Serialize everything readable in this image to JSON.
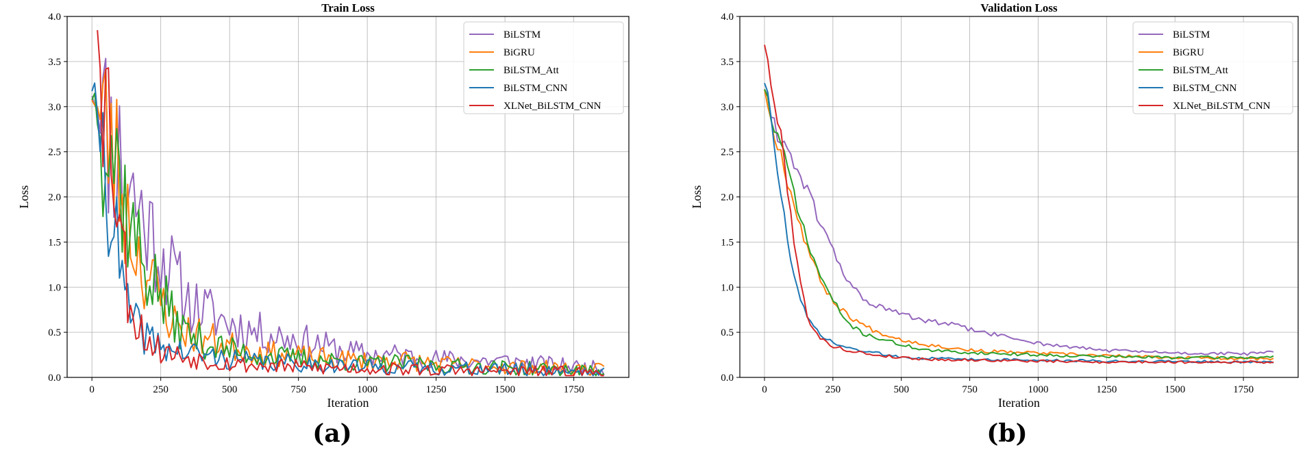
{
  "colors": {
    "BiLSTM": "#9467bd",
    "BiGRU": "#ff7f0e",
    "BiLSTM_Att": "#2ca02c",
    "BiLSTM_CNN": "#1f77b4",
    "XLNet_BiLSTM_CNN": "#d62728",
    "grid": "#b0b0b0"
  },
  "chart_data": [
    {
      "type": "line",
      "title": "Train Loss",
      "panel_label": "(a)",
      "xlabel": "Iteration",
      "ylabel": "Loss",
      "xlim": [
        -90,
        1950
      ],
      "ylim": [
        0,
        4.0
      ],
      "xticks": [
        0,
        250,
        500,
        750,
        1000,
        1250,
        1500,
        1750
      ],
      "yticks": [
        0.0,
        0.5,
        1.0,
        1.5,
        2.0,
        2.5,
        3.0,
        3.5,
        4.0
      ],
      "grid": true,
      "legend_position": "top-right",
      "noisy": true,
      "series": [
        {
          "name": "BiLSTM",
          "color_key": "BiLSTM",
          "seed": 11,
          "x": [
            0,
            30,
            70,
            100,
            130,
            160,
            200,
            250,
            300,
            350,
            400,
            500,
            600,
            700,
            800,
            900,
            1000,
            1100,
            1250,
            1500,
            1750,
            1860
          ],
          "y": [
            3.25,
            2.9,
            2.65,
            2.45,
            2.2,
            1.95,
            1.7,
            1.4,
            1.1,
            0.85,
            0.75,
            0.6,
            0.5,
            0.45,
            0.38,
            0.3,
            0.25,
            0.25,
            0.2,
            0.18,
            0.12,
            0.1
          ]
        },
        {
          "name": "BiGRU",
          "color_key": "BiGRU",
          "seed": 23,
          "x": [
            0,
            30,
            70,
            100,
            130,
            160,
            200,
            250,
            300,
            350,
            400,
            500,
            600,
            700,
            800,
            900,
            1000,
            1100,
            1250,
            1500,
            1750,
            1860
          ],
          "y": [
            3.2,
            2.85,
            2.6,
            2.2,
            1.75,
            1.45,
            1.15,
            0.85,
            0.6,
            0.5,
            0.45,
            0.35,
            0.28,
            0.25,
            0.22,
            0.2,
            0.18,
            0.2,
            0.15,
            0.12,
            0.1,
            0.08
          ]
        },
        {
          "name": "BiLSTM_Att",
          "color_key": "BiLSTM_Att",
          "seed": 37,
          "x": [
            0,
            30,
            70,
            100,
            130,
            160,
            200,
            250,
            300,
            350,
            400,
            500,
            600,
            700,
            800,
            900,
            1000,
            1100,
            1250,
            1500,
            1750,
            1860
          ],
          "y": [
            3.2,
            2.85,
            2.6,
            2.25,
            1.8,
            1.5,
            1.2,
            0.9,
            0.62,
            0.48,
            0.4,
            0.3,
            0.25,
            0.22,
            0.2,
            0.18,
            0.15,
            0.16,
            0.13,
            0.11,
            0.08,
            0.06
          ]
        },
        {
          "name": "BiLSTM_CNN",
          "color_key": "BiLSTM_CNN",
          "seed": 41,
          "x": [
            0,
            20,
            50,
            80,
            100,
            120,
            150,
            200,
            250,
            300,
            400,
            500,
            600,
            800,
            1000,
            1250,
            1500,
            1750,
            1860
          ],
          "y": [
            3.3,
            2.75,
            2.4,
            1.75,
            1.2,
            0.85,
            0.6,
            0.45,
            0.35,
            0.3,
            0.25,
            0.2,
            0.17,
            0.15,
            0.12,
            0.1,
            0.09,
            0.07,
            0.05
          ]
        },
        {
          "name": "XLNet_BiLSTM_CNN",
          "color_key": "XLNet_BiLSTM_CNN",
          "seed": 53,
          "x": [
            20,
            35,
            50,
            70,
            90,
            110,
            130,
            160,
            200,
            250,
            300,
            400,
            500,
            600,
            800,
            1000,
            1250,
            1500,
            1750,
            1860
          ],
          "y": [
            4.0,
            3.5,
            3.1,
            2.8,
            2.2,
            1.5,
            1.0,
            0.65,
            0.42,
            0.3,
            0.25,
            0.2,
            0.16,
            0.13,
            0.11,
            0.1,
            0.08,
            0.07,
            0.06,
            0.05
          ]
        }
      ]
    },
    {
      "type": "line",
      "title": "Validation Loss",
      "panel_label": "(b)",
      "xlabel": "Iteration",
      "ylabel": "Loss",
      "xlim": [
        -90,
        1950
      ],
      "ylim": [
        0,
        4.0
      ],
      "xticks": [
        0,
        250,
        500,
        750,
        1000,
        1250,
        1500,
        1750
      ],
      "yticks": [
        0.0,
        0.5,
        1.0,
        1.5,
        2.0,
        2.5,
        3.0,
        3.5,
        4.0
      ],
      "grid": true,
      "legend_position": "top-right",
      "noisy": false,
      "series": [
        {
          "name": "BiLSTM",
          "color_key": "BiLSTM",
          "seed": 61,
          "x": [
            0,
            25,
            50,
            100,
            150,
            200,
            250,
            300,
            350,
            400,
            450,
            500,
            600,
            700,
            750,
            800,
            900,
            1000,
            1100,
            1250,
            1500,
            1750,
            1860
          ],
          "y": [
            3.25,
            2.85,
            2.7,
            2.45,
            2.1,
            1.75,
            1.4,
            1.1,
            0.9,
            0.8,
            0.75,
            0.7,
            0.62,
            0.58,
            0.53,
            0.5,
            0.44,
            0.38,
            0.34,
            0.3,
            0.27,
            0.26,
            0.28
          ]
        },
        {
          "name": "BiGRU",
          "color_key": "BiGRU",
          "seed": 67,
          "x": [
            0,
            25,
            50,
            100,
            150,
            200,
            250,
            300,
            350,
            400,
            500,
            600,
            700,
            800,
            1000,
            1250,
            1500,
            1750,
            1860
          ],
          "y": [
            3.25,
            2.8,
            2.6,
            2.0,
            1.5,
            1.1,
            0.85,
            0.7,
            0.6,
            0.52,
            0.42,
            0.36,
            0.32,
            0.29,
            0.27,
            0.24,
            0.22,
            0.21,
            0.2
          ]
        },
        {
          "name": "BiLSTM_Att",
          "color_key": "BiLSTM_Att",
          "seed": 71,
          "x": [
            0,
            25,
            50,
            100,
            150,
            200,
            250,
            300,
            350,
            400,
            500,
            600,
            700,
            800,
            1000,
            1250,
            1500,
            1750,
            1860
          ],
          "y": [
            3.25,
            2.85,
            2.65,
            2.15,
            1.55,
            1.15,
            0.85,
            0.62,
            0.5,
            0.45,
            0.36,
            0.3,
            0.28,
            0.27,
            0.25,
            0.23,
            0.22,
            0.22,
            0.23
          ]
        },
        {
          "name": "BiLSTM_CNN",
          "color_key": "BiLSTM_CNN",
          "seed": 73,
          "x": [
            0,
            20,
            50,
            80,
            100,
            130,
            160,
            200,
            250,
            300,
            400,
            500,
            600,
            800,
            1000,
            1250,
            1500,
            1750,
            1860
          ],
          "y": [
            3.32,
            2.9,
            2.3,
            1.6,
            1.2,
            0.85,
            0.65,
            0.48,
            0.38,
            0.33,
            0.27,
            0.23,
            0.21,
            0.2,
            0.19,
            0.18,
            0.18,
            0.17,
            0.17
          ]
        },
        {
          "name": "XLNet_BiLSTM_CNN",
          "color_key": "XLNet_BiLSTM_CNN",
          "seed": 79,
          "x": [
            0,
            10,
            25,
            50,
            70,
            100,
            130,
            160,
            200,
            250,
            300,
            400,
            500,
            600,
            800,
            1000,
            1250,
            1500,
            1750,
            1860
          ],
          "y": [
            3.75,
            3.6,
            3.1,
            2.9,
            2.5,
            1.7,
            1.05,
            0.65,
            0.43,
            0.35,
            0.3,
            0.25,
            0.22,
            0.2,
            0.19,
            0.18,
            0.17,
            0.17,
            0.17,
            0.17
          ]
        }
      ]
    }
  ]
}
